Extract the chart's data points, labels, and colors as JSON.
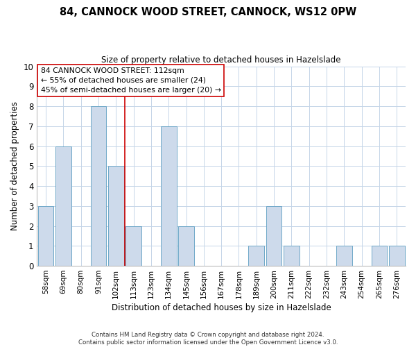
{
  "title": "84, CANNOCK WOOD STREET, CANNOCK, WS12 0PW",
  "subtitle": "Size of property relative to detached houses in Hazelslade",
  "xlabel": "Distribution of detached houses by size in Hazelslade",
  "ylabel": "Number of detached properties",
  "bar_labels": [
    "58sqm",
    "69sqm",
    "80sqm",
    "91sqm",
    "102sqm",
    "113sqm",
    "123sqm",
    "134sqm",
    "145sqm",
    "156sqm",
    "167sqm",
    "178sqm",
    "189sqm",
    "200sqm",
    "211sqm",
    "222sqm",
    "232sqm",
    "243sqm",
    "254sqm",
    "265sqm",
    "276sqm"
  ],
  "bar_values": [
    3,
    6,
    0,
    8,
    5,
    2,
    0,
    7,
    2,
    0,
    0,
    0,
    1,
    3,
    1,
    0,
    0,
    1,
    0,
    1,
    1
  ],
  "bar_color": "#cddaeb",
  "bar_edge_color": "#6fa8c8",
  "vline_color": "#cc0000",
  "ylim": [
    0,
    10
  ],
  "yticks": [
    0,
    1,
    2,
    3,
    4,
    5,
    6,
    7,
    8,
    9,
    10
  ],
  "annotation_line1": "84 CANNOCK WOOD STREET: 112sqm",
  "annotation_line2": "← 55% of detached houses are smaller (24)",
  "annotation_line3": "45% of semi-detached houses are larger (20) →",
  "footer_line1": "Contains HM Land Registry data © Crown copyright and database right 2024.",
  "footer_line2": "Contains public sector information licensed under the Open Government Licence v3.0.",
  "background_color": "#ffffff",
  "grid_color": "#c5d5e8"
}
